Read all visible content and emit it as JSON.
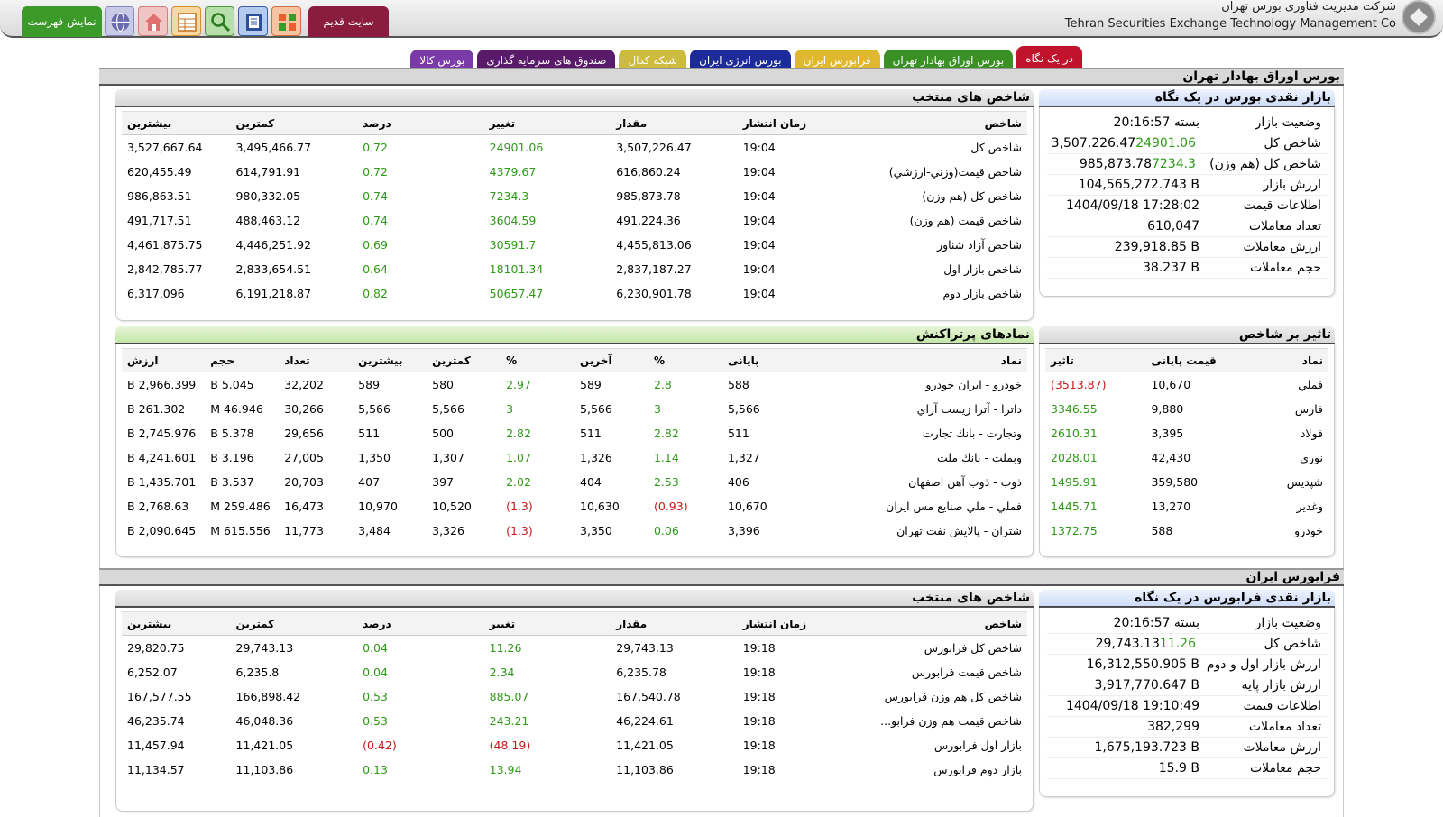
{
  "header": {
    "menu_button": "نمایش فهرست",
    "old_site_button": "سایت قدیم",
    "company_fa": "شرکت مدیریت فناوری بورس تهران",
    "company_en": "Tehran Securities Exchange Technology Management Co",
    "icons": [
      "globe-icon",
      "home-icon",
      "calculator-icon",
      "search-icon",
      "book-icon",
      "grid-icon"
    ]
  },
  "tabs": [
    {
      "label": "در یک نگاه",
      "color": "#c0142c",
      "active": true
    },
    {
      "label": "بورس اوراق بهادار تهران",
      "color": "#3a8f25"
    },
    {
      "label": "فرابورس ایران",
      "color": "#e0b830"
    },
    {
      "label": "بورس انرژی ایران",
      "color": "#1c2a9a"
    },
    {
      "label": "شبکه کدال",
      "color": "#cdbb40"
    },
    {
      "label": "صندوق های سرمایه گذاری",
      "color": "#5a1a6a"
    },
    {
      "label": "بورس کالا",
      "color": "#7a3aa8"
    }
  ],
  "tse": {
    "section_title": "بورس اوراق بهادار تهران",
    "glance": {
      "title": "بازار نقدی بورس در یک نگاه",
      "rows": [
        {
          "label": "وضعیت بازار",
          "value": "بسته 20:16:57",
          "change": ""
        },
        {
          "label": "شاخص کل",
          "value": "3,507,226.47",
          "change": "24901.06"
        },
        {
          "label": "شاخص کل (هم وزن)",
          "value": "985,873.78",
          "change": "7234.3"
        },
        {
          "label": "ارزش بازار",
          "value": "104,565,272.743 B",
          "change": ""
        },
        {
          "label": "اطلاعات قیمت",
          "value": "1404/09/18 17:28:02",
          "change": ""
        },
        {
          "label": "تعداد معاملات",
          "value": "610,047",
          "change": ""
        },
        {
          "label": "ارزش معاملات",
          "value": "239,918.85 B",
          "change": ""
        },
        {
          "label": "حجم معاملات",
          "value": "38.237 B",
          "change": ""
        }
      ]
    },
    "indices": {
      "title": "شاخص های منتخب",
      "headers": [
        "شاخص",
        "زمان انتشار",
        "مقدار",
        "تغییر",
        "درصد",
        "کمترین",
        "بیشترین"
      ],
      "rows": [
        [
          "شاخص کل",
          "19:04",
          "3,507,226.47",
          "24901.06",
          "0.72",
          "3,495,466.77",
          "3,527,667.64"
        ],
        [
          "شاخص قیمت(وزني-ارزشي)",
          "19:04",
          "616,860.24",
          "4379.67",
          "0.72",
          "614,791.91",
          "620,455.49"
        ],
        [
          "شاخص کل (هم وزن)",
          "19:04",
          "985,873.78",
          "7234.3",
          "0.74",
          "980,332.05",
          "986,863.51"
        ],
        [
          "شاخص قیمت (هم وزن)",
          "19:04",
          "491,224.36",
          "3604.59",
          "0.74",
          "488,463.12",
          "491,717.51"
        ],
        [
          "شاخص آزاد شناور",
          "19:04",
          "4,455,813.06",
          "30591.7",
          "0.69",
          "4,446,251.92",
          "4,461,875.75"
        ],
        [
          "شاخص بازار اول",
          "19:04",
          "2,837,187.27",
          "18101.34",
          "0.64",
          "2,833,654.51",
          "2,842,785.77"
        ],
        [
          "شاخص بازار دوم",
          "19:04",
          "6,230,901.78",
          "50657.47",
          "0.82",
          "6,191,218.87",
          "6,317,096"
        ]
      ]
    },
    "impact": {
      "title": "تاثیر بر شاخص",
      "headers": [
        "نماد",
        "قیمت پایانی",
        "تاثیر"
      ],
      "rows": [
        [
          "فملي",
          "10,670",
          "(3513.87)"
        ],
        [
          "فارس",
          "9,880",
          "3346.55"
        ],
        [
          "فولاد",
          "3,395",
          "2610.31"
        ],
        [
          "نوري",
          "42,430",
          "2028.01"
        ],
        [
          "شپديس",
          "359,580",
          "1495.91"
        ],
        [
          "وغدير",
          "13,270",
          "1445.71"
        ],
        [
          "خودرو",
          "588",
          "1372.75"
        ]
      ]
    },
    "busy": {
      "title": "نمادهای پرتراکنش",
      "headers": [
        "نماد",
        "پایانی",
        "%",
        "آخرین",
        "%",
        "کمترین",
        "بیشترین",
        "تعداد",
        "حجم",
        "ارزش"
      ],
      "rows": [
        [
          "خودرو - ايران خودرو",
          "588",
          "2.8",
          "589",
          "2.97",
          "580",
          "589",
          "32,202",
          "5.045 B",
          "2,966.399 B"
        ],
        [
          "داترا - آترا زيست آراي",
          "5,566",
          "3",
          "5,566",
          "3",
          "5,566",
          "5,566",
          "30,266",
          "46.946 M",
          "261.302 B"
        ],
        [
          "وتجارت - بانك تجارت",
          "511",
          "2.82",
          "511",
          "2.82",
          "500",
          "511",
          "29,656",
          "5.378 B",
          "2,745.976 B"
        ],
        [
          "وبملت - بانك ملت",
          "1,327",
          "1.14",
          "1,326",
          "1.07",
          "1,307",
          "1,350",
          "27,005",
          "3.196 B",
          "4,241.601 B"
        ],
        [
          "ذوب - ذوب آهن اصفهان",
          "406",
          "2.53",
          "404",
          "2.02",
          "397",
          "407",
          "20,703",
          "3.537 B",
          "1,435.701 B"
        ],
        [
          "فملي - ملي صنايع مس ايران",
          "10,670",
          "(0.93)",
          "10,630",
          "(1.3)",
          "10,520",
          "10,970",
          "16,473",
          "259.486 M",
          "2,768.63 B"
        ],
        [
          "شتران - پالايش نفت تهران",
          "3,396",
          "0.06",
          "3,350",
          "(1.3)",
          "3,326",
          "3,484",
          "11,773",
          "615.556 M",
          "2,090.645 B"
        ]
      ]
    }
  },
  "ifb": {
    "section_title": "فرابورس ایران",
    "glance": {
      "title": "بازار نقدی فرابورس در یک نگاه",
      "rows": [
        {
          "label": "وضعیت بازار",
          "value": "بسته 20:16:57",
          "change": ""
        },
        {
          "label": "شاخص کل",
          "value": "29,743.13",
          "change": "11.26"
        },
        {
          "label": "ارزش بازار اول و دوم",
          "value": "16,312,550.905 B",
          "change": ""
        },
        {
          "label": "ارزش بازار پایه",
          "value": "3,917,770.647 B",
          "change": ""
        },
        {
          "label": "اطلاعات قیمت",
          "value": "1404/09/18 19:10:49",
          "change": ""
        },
        {
          "label": "تعداد معاملات",
          "value": "382,299",
          "change": ""
        },
        {
          "label": "ارزش معاملات",
          "value": "1,675,193.723 B",
          "change": ""
        },
        {
          "label": "حجم معاملات",
          "value": "15.9 B",
          "change": ""
        }
      ]
    },
    "indices": {
      "title": "شاخص های منتخب",
      "headers": [
        "شاخص",
        "زمان انتشار",
        "مقدار",
        "تغییر",
        "درصد",
        "کمترین",
        "بیشترین"
      ],
      "rows": [
        [
          "شاخص كل فرابورس",
          "19:18",
          "29,743.13",
          "11.26",
          "0.04",
          "29,743.13",
          "29,820.75"
        ],
        [
          "شاخص قيمت فرابورس",
          "19:18",
          "6,235.78",
          "2.34",
          "0.04",
          "6,235.8",
          "6,252.07"
        ],
        [
          "شاخص کل هم وزن فرابورس",
          "19:18",
          "167,540.78",
          "885.07",
          "0.53",
          "166,898.42",
          "167,577.55"
        ],
        [
          "شاخص قیمت هم وزن فرابو...",
          "19:18",
          "46,224.61",
          "243.21",
          "0.53",
          "46,048.36",
          "46,235.74"
        ],
        [
          "بازار اول فرابورس",
          "19:18",
          "11,421.05",
          "(48.19)",
          "(0.42)",
          "11,421.05",
          "11,457.94"
        ],
        [
          "بازار دوم فرابورس",
          "19:18",
          "11,103.86",
          "13.94",
          "0.13",
          "11,103.86",
          "11,134.57"
        ]
      ]
    }
  }
}
